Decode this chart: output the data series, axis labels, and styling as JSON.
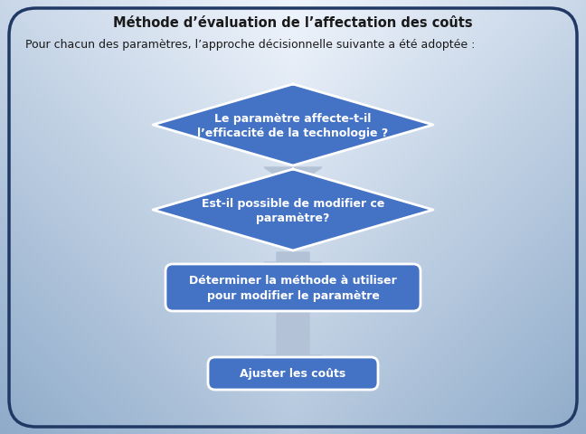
{
  "title": "Méthode d’évaluation de l’affectation des coûts",
  "subtitle": "Pour chacun des paramètres, l’approche décisionnelle suivante a été adoptée :",
  "diamond1_line1": "Le paramètre affecte-t-il",
  "diamond1_line2": "l’efficacité de la technologie ?",
  "diamond2_line1": "Est-il possible de modifier ce",
  "diamond2_line2": "paramètre?",
  "rect1_line1": "Déterminer la méthode à utiliser",
  "rect1_line2": "pour modifier le paramètre",
  "rect2_text": "Ajuster les coûts",
  "shape_fill": "#4472c4",
  "shape_text_color": "#ffffff",
  "arrow_color_r": 0.7,
  "arrow_color_g": 0.76,
  "arrow_color_b": 0.84,
  "border_color": "#1f3864",
  "title_fontsize": 10.5,
  "subtitle_fontsize": 9.0,
  "shape_fontsize": 9.0
}
